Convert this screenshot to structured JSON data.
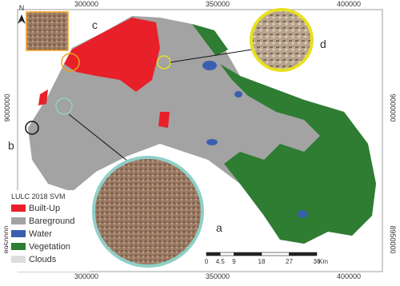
{
  "map": {
    "north": "N",
    "top_ticks": [
      "300000",
      "350000",
      "400000"
    ],
    "bottom_ticks": [
      "300000",
      "350000",
      "400000"
    ],
    "left_ticks": [
      "9000000",
      "8950000"
    ],
    "right_ticks": [
      "9000000",
      "8950000"
    ],
    "inset_labels": [
      "a",
      "b",
      "c",
      "d"
    ],
    "legend": {
      "title": "LULC 2018 SVM",
      "items": [
        "Built-Up",
        "Bareground",
        "Water",
        "Vegetation",
        "Clouds"
      ]
    },
    "scale_bar": {
      "labels": [
        "0",
        "4.5",
        "9",
        "18",
        "27",
        "36"
      ],
      "unit": "Km"
    }
  }
}
